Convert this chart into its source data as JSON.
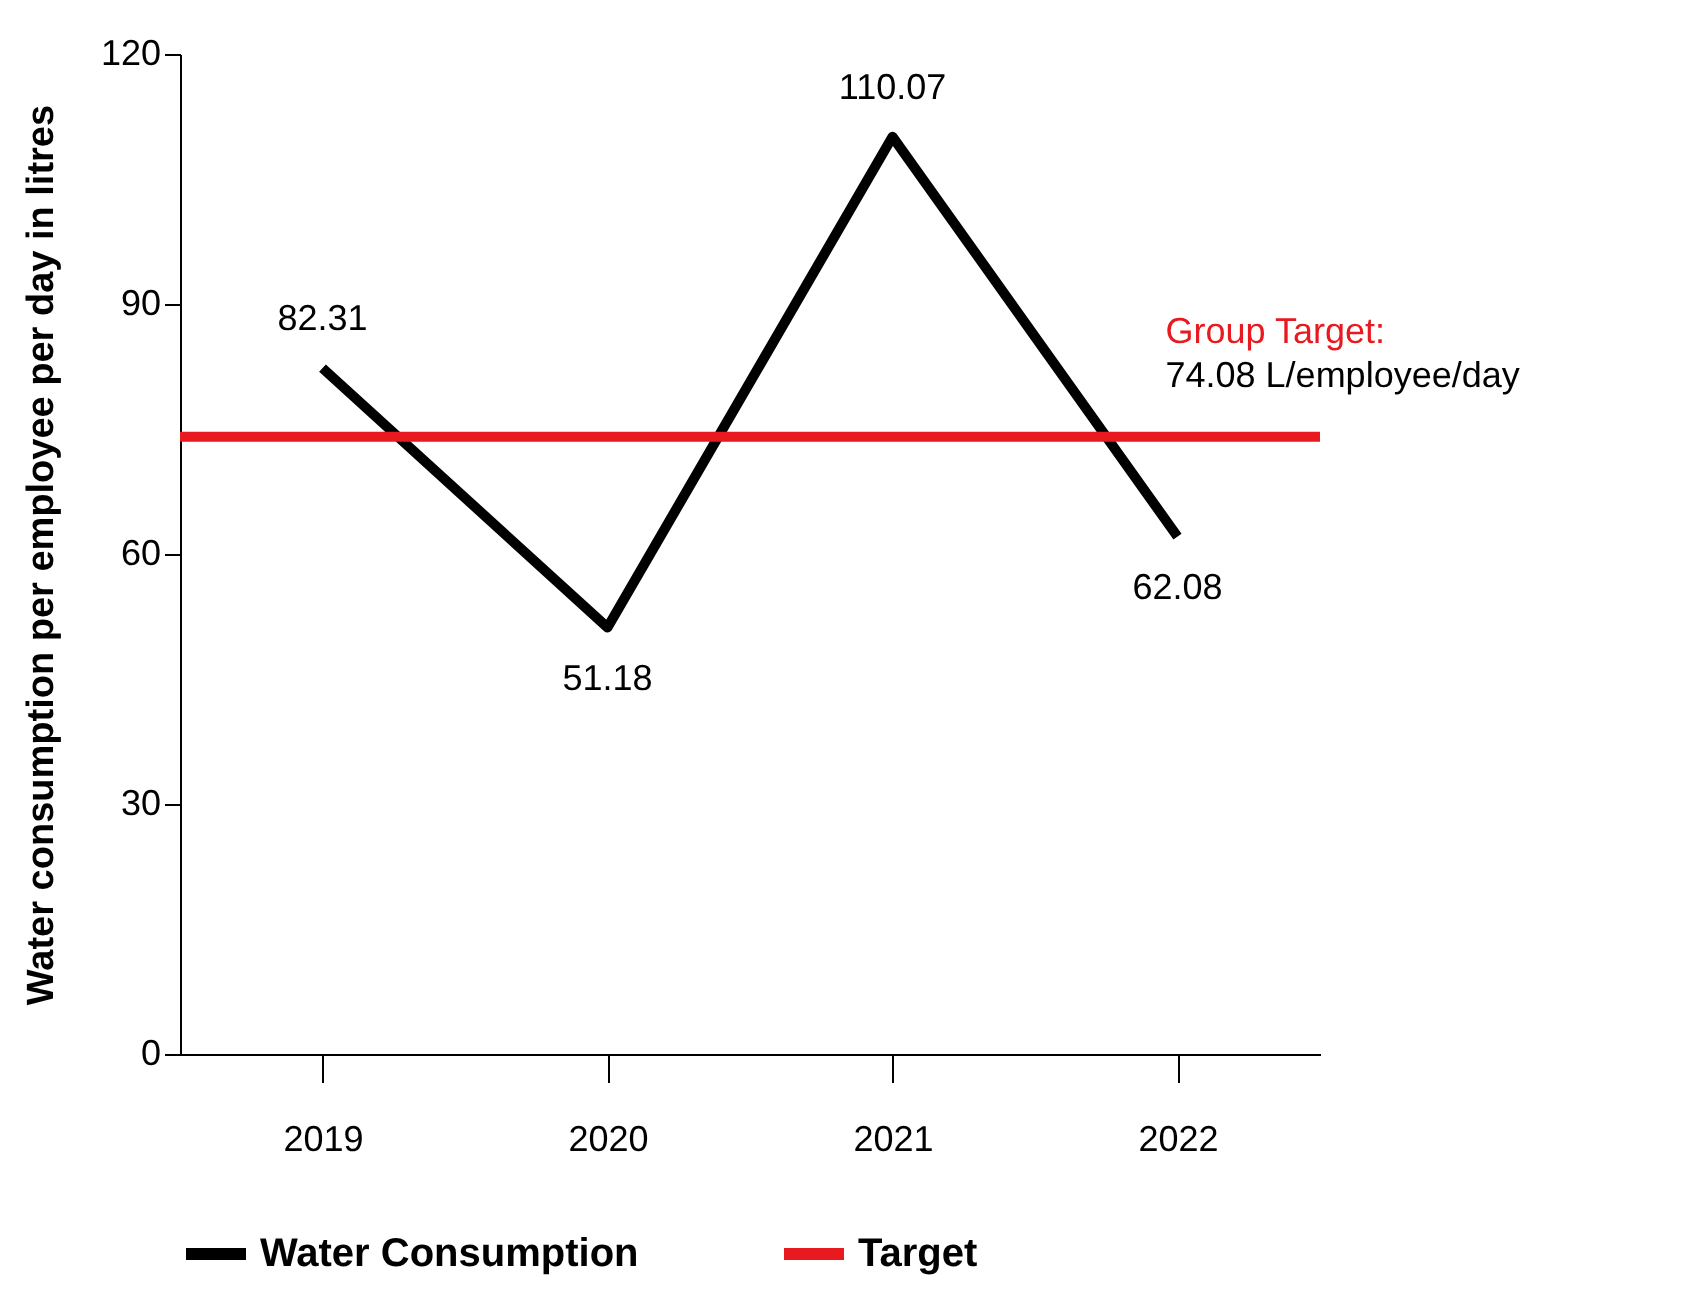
{
  "chart_data": {
    "type": "line",
    "ylabel": "Water consumption per employee per day in litres",
    "categories": [
      "2019",
      "2020",
      "2021",
      "2022"
    ],
    "series": [
      {
        "name": "Water Consumption",
        "color": "#000000",
        "values": [
          82.31,
          51.18,
          110.07,
          62.08
        ]
      }
    ],
    "ref_lines": [
      {
        "axis": "y",
        "value": 74.08,
        "label": "Target",
        "color": "#e8191f",
        "line_style": "solid"
      }
    ],
    "annotations": [
      {
        "text": "Group Target:",
        "x": "2022",
        "y": 74.08
      },
      {
        "text": "74.08 L/employee/day",
        "x": "2022",
        "y": 74.08
      }
    ],
    "ylim": [
      0,
      120
    ],
    "yticks": [
      0,
      30,
      60,
      90,
      120
    ],
    "data_labels": true,
    "grid": false,
    "legend": "bottom",
    "marker": "none",
    "line_style": "solid"
  }
}
